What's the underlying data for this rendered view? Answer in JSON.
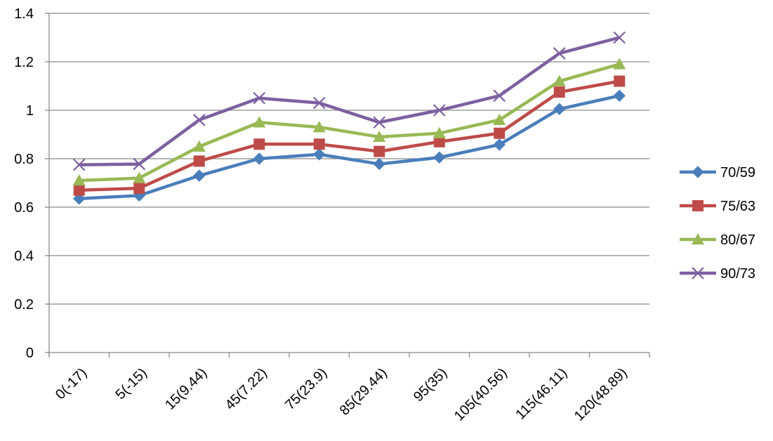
{
  "chart_data": {
    "type": "line",
    "title": "",
    "xlabel": "",
    "ylabel": "",
    "categories": [
      "0(-17)",
      "5(-15)",
      "15(9.44)",
      "45(7.22)",
      "75(23.9)",
      "85(29.44)",
      "95(35)",
      "105(40.56)",
      "115(46.11)",
      "120(48.89)"
    ],
    "ylim": [
      0,
      1.4
    ],
    "yticks": [
      "0",
      "0.2",
      "0.4",
      "0.6",
      "0.8",
      "1",
      "1.2",
      "1.4"
    ],
    "grid": "horizontal",
    "legend_position": "right",
    "series": [
      {
        "name": "70/59",
        "color": "#4a7ebb",
        "marker": "diamond",
        "values": [
          0.635,
          0.648,
          0.73,
          0.8,
          0.818,
          0.778,
          0.805,
          0.858,
          1.005,
          1.06
        ]
      },
      {
        "name": "75/63",
        "color": "#be4b48",
        "marker": "square",
        "values": [
          0.67,
          0.678,
          0.79,
          0.86,
          0.86,
          0.83,
          0.87,
          0.905,
          1.075,
          1.12
        ]
      },
      {
        "name": "80/67",
        "color": "#98b954",
        "marker": "triangle",
        "values": [
          0.71,
          0.72,
          0.85,
          0.95,
          0.93,
          0.89,
          0.905,
          0.96,
          1.12,
          1.19
        ]
      },
      {
        "name": "90/73",
        "color": "#7d60a0",
        "marker": "x",
        "values": [
          0.775,
          0.778,
          0.96,
          1.05,
          1.03,
          0.95,
          1.0,
          1.06,
          1.235,
          1.3
        ]
      }
    ]
  }
}
